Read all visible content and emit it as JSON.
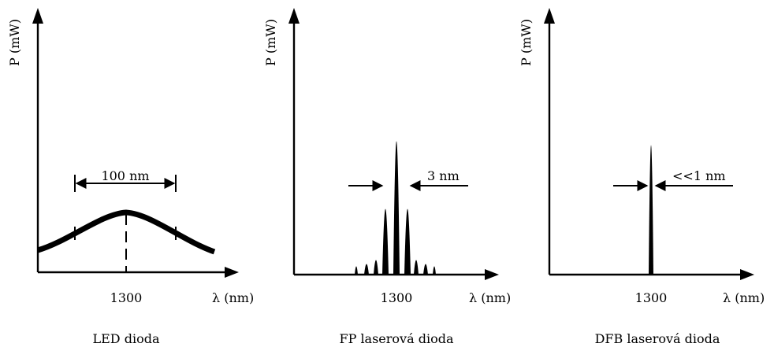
{
  "panels": [
    {
      "id": "led",
      "ylabel": "P (mW)",
      "xlabel": "λ (nm)",
      "tick_label": "1300",
      "width_label": "100 nm",
      "caption": "LED dioda"
    },
    {
      "id": "fp",
      "ylabel": "P (mW)",
      "xlabel": "λ (nm)",
      "tick_label": "1300",
      "width_label": "3 nm",
      "caption": "FP laserová dioda"
    },
    {
      "id": "dfb",
      "ylabel": "P (mW)",
      "xlabel": "λ (nm)",
      "tick_label": "1300",
      "width_label": "<<1 nm",
      "caption": "DFB laserová dioda"
    }
  ]
}
